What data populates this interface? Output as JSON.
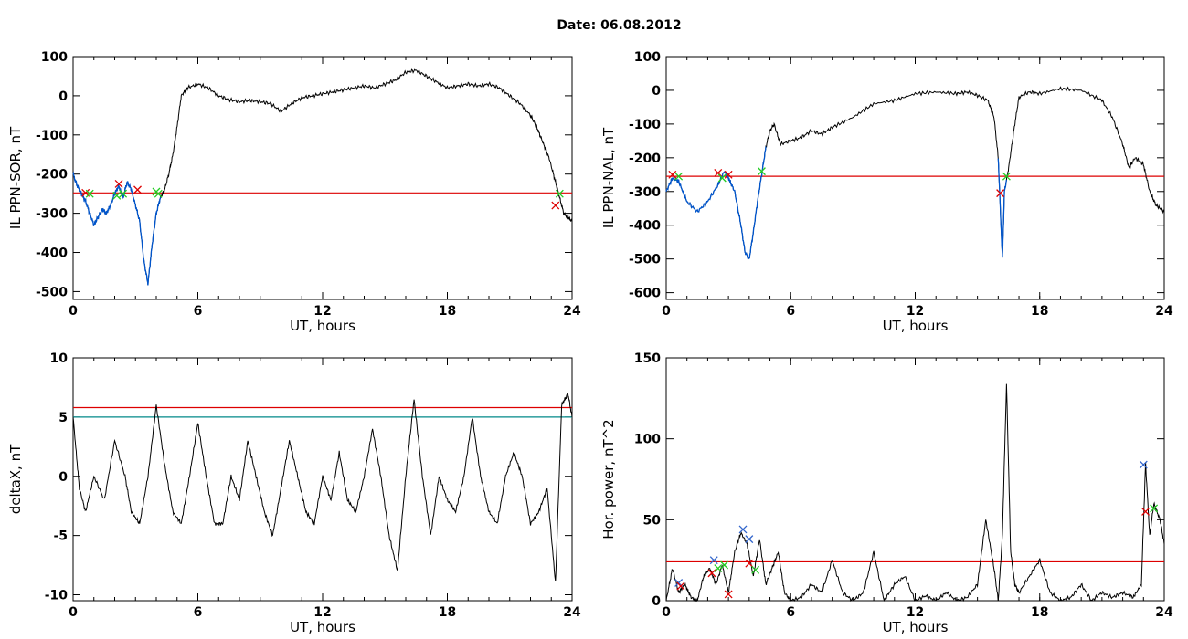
{
  "figure": {
    "title": "Date:  06.08.2012"
  },
  "colors": {
    "trace": "#000000",
    "highlight": "#0055cc",
    "threshold": "#dd0000",
    "threshold2": "#008888",
    "marker_red": "#dd0000",
    "marker_green": "#22cc22",
    "marker_blue": "#3366cc"
  },
  "chart_data": [
    {
      "id": "il-sor",
      "type": "line",
      "xlabel": "UT, hours",
      "ylabel": "IL PPN-SOR, nT",
      "xlim": [
        0,
        24
      ],
      "ylim": [
        -520,
        100
      ],
      "xticks": [
        0,
        6,
        12,
        18,
        24
      ],
      "yticks": [
        100,
        0,
        -100,
        -200,
        -300,
        -400,
        -500
      ],
      "thresholds": [
        {
          "y": -248,
          "color": "#dd0000"
        }
      ],
      "x": [
        0,
        0.2,
        0.4,
        0.6,
        0.8,
        1.0,
        1.2,
        1.4,
        1.6,
        1.8,
        2.0,
        2.2,
        2.4,
        2.6,
        2.8,
        3.0,
        3.2,
        3.4,
        3.6,
        3.8,
        4.0,
        4.2,
        4.4,
        4.6,
        4.8,
        5.0,
        5.2,
        5.5,
        6.0,
        6.5,
        7.0,
        7.5,
        8.0,
        8.5,
        9.0,
        9.5,
        10.0,
        10.5,
        11.0,
        11.5,
        12.0,
        12.5,
        13.0,
        13.5,
        14.0,
        14.5,
        15.0,
        15.5,
        16.0,
        16.5,
        17.0,
        17.5,
        18.0,
        18.5,
        19.0,
        19.5,
        20.0,
        20.5,
        21.0,
        21.5,
        22.0,
        22.3,
        22.6,
        22.9,
        23.2,
        23.4,
        23.6,
        23.8,
        24.0
      ],
      "y": [
        -200,
        -230,
        -250,
        -270,
        -300,
        -330,
        -310,
        -290,
        -300,
        -280,
        -250,
        -230,
        -260,
        -220,
        -240,
        -280,
        -320,
        -420,
        -480,
        -380,
        -300,
        -260,
        -240,
        -200,
        -150,
        -80,
        0,
        20,
        30,
        20,
        0,
        -10,
        -15,
        -12,
        -15,
        -20,
        -40,
        -20,
        -5,
        0,
        5,
        10,
        15,
        20,
        25,
        20,
        30,
        40,
        60,
        65,
        50,
        35,
        20,
        25,
        30,
        25,
        30,
        20,
        0,
        -20,
        -50,
        -80,
        -120,
        -160,
        -220,
        -260,
        -300,
        -310,
        -320
      ],
      "highlight_x": [
        0.0,
        4.2
      ],
      "markers": [
        {
          "x": 0.6,
          "y": -248,
          "color": "red"
        },
        {
          "x": 0.8,
          "y": -250,
          "color": "green"
        },
        {
          "x": 2.1,
          "y": -255,
          "color": "green"
        },
        {
          "x": 2.2,
          "y": -225,
          "color": "red"
        },
        {
          "x": 2.4,
          "y": -250,
          "color": "green"
        },
        {
          "x": 3.1,
          "y": -240,
          "color": "red"
        },
        {
          "x": 4.0,
          "y": -245,
          "color": "green"
        },
        {
          "x": 4.1,
          "y": -250,
          "color": "green"
        },
        {
          "x": 23.2,
          "y": -280,
          "color": "red"
        },
        {
          "x": 23.4,
          "y": -250,
          "color": "green"
        }
      ]
    },
    {
      "id": "il-nal",
      "type": "line",
      "xlabel": "UT, hours",
      "ylabel": "IL PPN-NAL, nT",
      "xlim": [
        0,
        24
      ],
      "ylim": [
        -620,
        100
      ],
      "xticks": [
        0,
        6,
        12,
        18,
        24
      ],
      "yticks": [
        100,
        0,
        -100,
        -200,
        -300,
        -400,
        -500,
        -600
      ],
      "thresholds": [
        {
          "y": -255,
          "color": "#dd0000"
        }
      ],
      "x": [
        0,
        0.3,
        0.6,
        1.0,
        1.5,
        2.0,
        2.5,
        2.8,
        3.0,
        3.3,
        3.6,
        3.8,
        4.0,
        4.2,
        4.4,
        4.6,
        4.8,
        5.0,
        5.2,
        5.5,
        6.0,
        6.5,
        7.0,
        7.5,
        8.0,
        9.0,
        10.0,
        11.0,
        12.0,
        13.0,
        14.0,
        14.5,
        15.0,
        15.5,
        15.8,
        16.0,
        16.2,
        16.3,
        16.5,
        16.8,
        17.0,
        17.5,
        18.0,
        19.0,
        20.0,
        21.0,
        21.5,
        22.0,
        22.3,
        22.6,
        23.0,
        23.3,
        23.6,
        24.0
      ],
      "y": [
        -300,
        -260,
        -270,
        -330,
        -360,
        -330,
        -280,
        -240,
        -260,
        -300,
        -400,
        -480,
        -500,
        -420,
        -330,
        -250,
        -170,
        -120,
        -100,
        -160,
        -150,
        -140,
        -120,
        -130,
        -110,
        -80,
        -40,
        -30,
        -10,
        -5,
        -10,
        -5,
        -15,
        -30,
        -80,
        -200,
        -500,
        -300,
        -230,
        -100,
        -20,
        -5,
        -10,
        5,
        0,
        -30,
        -80,
        -160,
        -230,
        -200,
        -220,
        -300,
        -340,
        -360
      ],
      "highlight_x": [
        0.0,
        4.8
      ],
      "highlight_x2": [
        16.0,
        16.4
      ],
      "markers": [
        {
          "x": 0.3,
          "y": -250,
          "color": "red"
        },
        {
          "x": 0.6,
          "y": -255,
          "color": "green"
        },
        {
          "x": 2.5,
          "y": -245,
          "color": "red"
        },
        {
          "x": 2.7,
          "y": -260,
          "color": "green"
        },
        {
          "x": 3.0,
          "y": -250,
          "color": "red"
        },
        {
          "x": 4.6,
          "y": -240,
          "color": "green"
        },
        {
          "x": 16.1,
          "y": -305,
          "color": "red"
        },
        {
          "x": 16.4,
          "y": -255,
          "color": "green"
        }
      ]
    },
    {
      "id": "deltax",
      "type": "line",
      "xlabel": "UT, hours",
      "ylabel": "deltaX, nT",
      "xlim": [
        0,
        24
      ],
      "ylim": [
        -10.5,
        10
      ],
      "xticks": [
        0,
        6,
        12,
        18,
        24
      ],
      "yticks": [
        10,
        5,
        0,
        -5,
        -10
      ],
      "thresholds": [
        {
          "y": 5.8,
          "color": "#dd0000"
        },
        {
          "y": 5.0,
          "color": "#008888"
        }
      ],
      "x": [
        0,
        0.3,
        0.6,
        1.0,
        1.5,
        2.0,
        2.5,
        2.8,
        3.2,
        3.6,
        4.0,
        4.4,
        4.8,
        5.2,
        5.6,
        6.0,
        6.4,
        6.8,
        7.2,
        7.6,
        8.0,
        8.4,
        8.8,
        9.2,
        9.6,
        10.0,
        10.4,
        10.8,
        11.2,
        11.6,
        12.0,
        12.4,
        12.8,
        13.2,
        13.6,
        14.0,
        14.4,
        14.8,
        15.2,
        15.6,
        16.0,
        16.4,
        16.8,
        17.2,
        17.6,
        18.0,
        18.4,
        18.8,
        19.2,
        19.6,
        20.0,
        20.4,
        20.8,
        21.2,
        21.6,
        22.0,
        22.4,
        22.8,
        23.2,
        23.5,
        23.8,
        24.0
      ],
      "y": [
        5,
        -1,
        -3,
        0,
        -2,
        3,
        0,
        -3,
        -4,
        0,
        6,
        1,
        -3,
        -4,
        0,
        4.5,
        0,
        -4,
        -4,
        0,
        -2,
        3,
        0,
        -3,
        -5,
        -1,
        3,
        0,
        -3,
        -4,
        0,
        -2,
        2,
        -2,
        -3,
        0,
        4,
        0,
        -5,
        -8,
        0,
        6.5,
        0,
        -5,
        0,
        -2,
        -3,
        0,
        5,
        0,
        -3,
        -4,
        0,
        2,
        0,
        -4,
        -3,
        -1,
        -9,
        6,
        7,
        5
      ],
      "markers": []
    },
    {
      "id": "hor-power",
      "type": "line",
      "xlabel": "UT, hours",
      "ylabel": "Hor. power, nT^2",
      "xlim": [
        0,
        24
      ],
      "ylim": [
        0,
        150
      ],
      "xticks": [
        0,
        6,
        12,
        18,
        24
      ],
      "yticks": [
        150,
        100,
        50,
        0
      ],
      "thresholds": [
        {
          "y": 24,
          "color": "#dd0000"
        }
      ],
      "x": [
        0,
        0.3,
        0.6,
        0.9,
        1.2,
        1.5,
        1.8,
        2.1,
        2.4,
        2.7,
        3.0,
        3.3,
        3.6,
        3.9,
        4.2,
        4.5,
        4.8,
        5.1,
        5.4,
        5.7,
        6.0,
        6.5,
        7.0,
        7.5,
        8.0,
        8.5,
        9.0,
        9.5,
        10.0,
        10.5,
        11.0,
        11.5,
        12.0,
        12.5,
        13.0,
        13.5,
        14.0,
        14.5,
        15.0,
        15.4,
        15.8,
        16.0,
        16.2,
        16.4,
        16.6,
        16.8,
        17.0,
        17.5,
        18.0,
        18.5,
        19.0,
        19.5,
        20.0,
        20.5,
        21.0,
        21.5,
        22.0,
        22.5,
        22.9,
        23.1,
        23.3,
        23.5,
        23.8,
        24.0
      ],
      "y": [
        0,
        20,
        5,
        10,
        2,
        0,
        15,
        20,
        10,
        22,
        5,
        30,
        42,
        35,
        15,
        38,
        10,
        20,
        30,
        5,
        0,
        2,
        10,
        5,
        25,
        5,
        0,
        5,
        30,
        0,
        10,
        15,
        0,
        3,
        0,
        5,
        0,
        2,
        10,
        50,
        20,
        0,
        40,
        134,
        30,
        10,
        5,
        15,
        25,
        5,
        0,
        2,
        10,
        0,
        5,
        2,
        5,
        2,
        10,
        85,
        40,
        60,
        50,
        35
      ],
      "markers": [
        {
          "x": 0.6,
          "y": 11,
          "color": "blue"
        },
        {
          "x": 0.7,
          "y": 9,
          "color": "red"
        },
        {
          "x": 2.2,
          "y": 17,
          "color": "red"
        },
        {
          "x": 2.3,
          "y": 25,
          "color": "blue"
        },
        {
          "x": 2.5,
          "y": 20,
          "color": "green"
        },
        {
          "x": 2.8,
          "y": 22,
          "color": "green"
        },
        {
          "x": 3.0,
          "y": 4,
          "color": "red"
        },
        {
          "x": 3.7,
          "y": 44,
          "color": "blue"
        },
        {
          "x": 4.0,
          "y": 38,
          "color": "blue"
        },
        {
          "x": 4.0,
          "y": 23,
          "color": "red"
        },
        {
          "x": 4.3,
          "y": 19,
          "color": "green"
        },
        {
          "x": 23.0,
          "y": 84,
          "color": "blue"
        },
        {
          "x": 23.1,
          "y": 55,
          "color": "red"
        },
        {
          "x": 23.5,
          "y": 57,
          "color": "green"
        }
      ]
    }
  ]
}
